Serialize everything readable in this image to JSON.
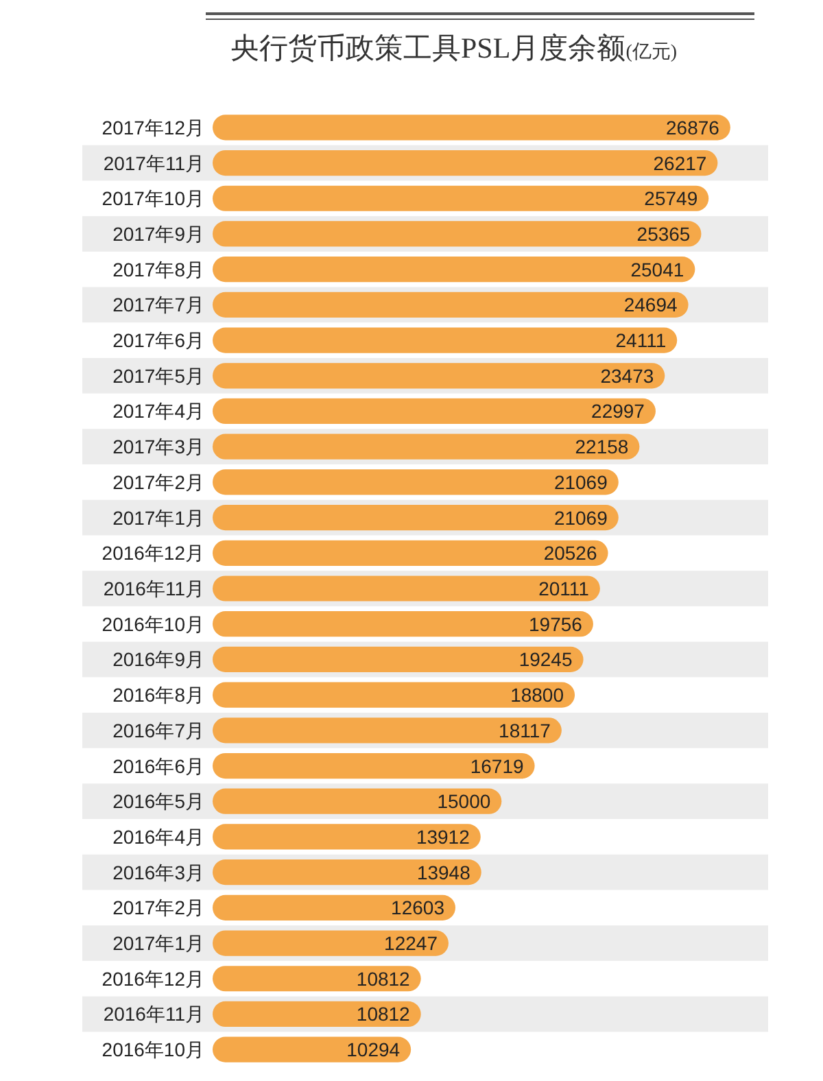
{
  "chart_data": {
    "type": "bar",
    "orientation": "horizontal",
    "title": "央行货币政策工具PSL月度余额",
    "subtitle": "(亿元)",
    "relative": false,
    "data_labels": true,
    "color": "#f5a849",
    "categories": [
      "2017年12月",
      "2017年11月",
      "2017年10月",
      "2017年9月",
      "2017年8月",
      "2017年7月",
      "2017年6月",
      "2017年5月",
      "2017年4月",
      "2017年3月",
      "2017年2月",
      "2017年1月",
      "2016年12月",
      "2016年11月",
      "2016年10月",
      "2016年9月",
      "2016年8月",
      "2016年7月",
      "2016年6月",
      "2016年5月",
      "2016年4月",
      "2016年3月",
      "2017年2月",
      "2017年1月",
      "2016年12月",
      "2016年11月",
      "2016年10月"
    ],
    "values": [
      26876,
      26217,
      25749,
      25365,
      25041,
      24694,
      24111,
      23473,
      22997,
      22158,
      21069,
      21069,
      20526,
      20111,
      19756,
      19245,
      18800,
      18117,
      16719,
      15000,
      13912,
      13948,
      12603,
      12247,
      10812,
      10812,
      10294
    ]
  }
}
